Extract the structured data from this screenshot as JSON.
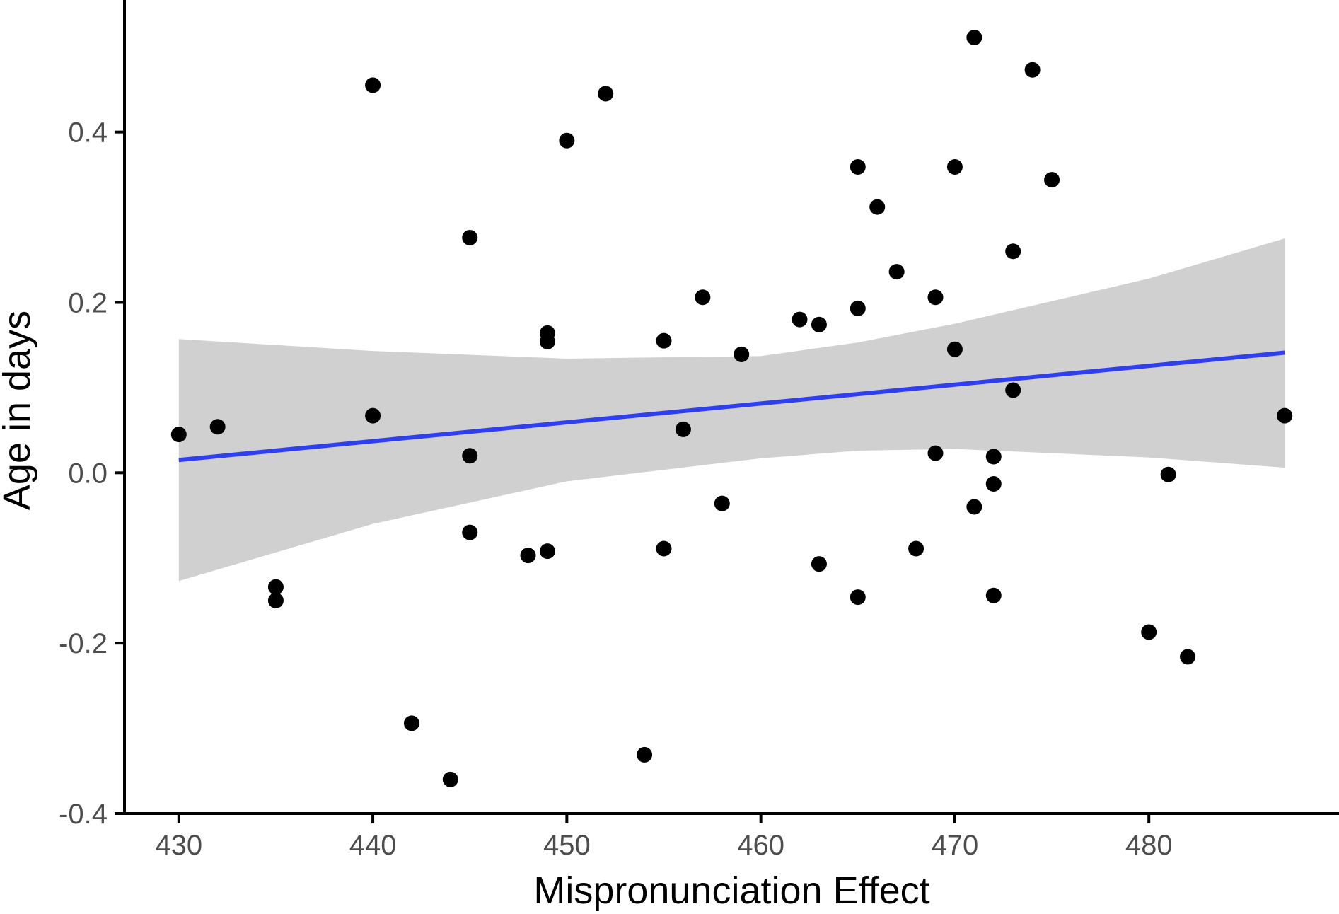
{
  "chart_data": {
    "type": "scatter",
    "title": "",
    "xlabel": "Mispronunciation Effect",
    "ylabel": "Age in days",
    "xlim": [
      427.2,
      489.8
    ],
    "ylim": [
      -0.4,
      0.555
    ],
    "xticks": [
      430,
      440,
      450,
      460,
      470,
      480
    ],
    "xtick_labels": [
      "430",
      "440",
      "450",
      "460",
      "470",
      "480"
    ],
    "yticks": [
      -0.4,
      -0.2,
      0.0,
      0.2,
      0.4
    ],
    "ytick_labels": [
      "-0.4",
      "-0.2",
      "0.0",
      "0.2",
      "0.4"
    ],
    "grid": false,
    "legend": "none",
    "points": [
      {
        "x": 430,
        "y": 0.045
      },
      {
        "x": 432,
        "y": 0.054
      },
      {
        "x": 435,
        "y": -0.134
      },
      {
        "x": 435,
        "y": -0.15
      },
      {
        "x": 440,
        "y": 0.455
      },
      {
        "x": 440,
        "y": 0.067
      },
      {
        "x": 442,
        "y": -0.294
      },
      {
        "x": 444,
        "y": -0.36
      },
      {
        "x": 445,
        "y": 0.276
      },
      {
        "x": 445,
        "y": 0.02
      },
      {
        "x": 445,
        "y": -0.07
      },
      {
        "x": 448,
        "y": -0.097
      },
      {
        "x": 449,
        "y": 0.164
      },
      {
        "x": 449,
        "y": 0.154
      },
      {
        "x": 449,
        "y": -0.092
      },
      {
        "x": 450,
        "y": 0.39
      },
      {
        "x": 452,
        "y": 0.445
      },
      {
        "x": 454,
        "y": -0.331
      },
      {
        "x": 455,
        "y": 0.155
      },
      {
        "x": 455,
        "y": -0.089
      },
      {
        "x": 456,
        "y": 0.051
      },
      {
        "x": 457,
        "y": 0.206
      },
      {
        "x": 458,
        "y": -0.036
      },
      {
        "x": 459,
        "y": 0.139
      },
      {
        "x": 462,
        "y": 0.18
      },
      {
        "x": 463,
        "y": 0.174
      },
      {
        "x": 463,
        "y": -0.107
      },
      {
        "x": 465,
        "y": 0.359
      },
      {
        "x": 465,
        "y": 0.193
      },
      {
        "x": 465,
        "y": -0.146
      },
      {
        "x": 466,
        "y": 0.312
      },
      {
        "x": 467,
        "y": 0.236
      },
      {
        "x": 468,
        "y": -0.089
      },
      {
        "x": 469,
        "y": 0.206
      },
      {
        "x": 469,
        "y": 0.023
      },
      {
        "x": 470,
        "y": 0.359
      },
      {
        "x": 470,
        "y": 0.145
      },
      {
        "x": 471,
        "y": 0.511
      },
      {
        "x": 471,
        "y": -0.04
      },
      {
        "x": 472,
        "y": 0.019
      },
      {
        "x": 472,
        "y": -0.013
      },
      {
        "x": 472,
        "y": -0.144
      },
      {
        "x": 473,
        "y": 0.26
      },
      {
        "x": 473,
        "y": 0.097
      },
      {
        "x": 474,
        "y": 0.473
      },
      {
        "x": 475,
        "y": 0.344
      },
      {
        "x": 480,
        "y": -0.187
      },
      {
        "x": 481,
        "y": -0.002
      },
      {
        "x": 482,
        "y": -0.216
      },
      {
        "x": 487,
        "y": 0.067
      }
    ],
    "fit_line": {
      "x": [
        430,
        487
      ],
      "y": [
        0.015,
        0.141
      ]
    },
    "confidence_band": {
      "x": [
        430,
        440,
        450,
        460,
        465,
        470,
        480,
        487
      ],
      "upper": [
        0.157,
        0.143,
        0.134,
        0.137,
        0.153,
        0.175,
        0.228,
        0.275
      ],
      "lower": [
        -0.127,
        -0.06,
        -0.01,
        0.017,
        0.026,
        0.028,
        0.018,
        0.006
      ]
    },
    "colors": {
      "points": "#000000",
      "line": "#2f3ff0",
      "band": "#bebebe",
      "axis": "#000000"
    }
  }
}
